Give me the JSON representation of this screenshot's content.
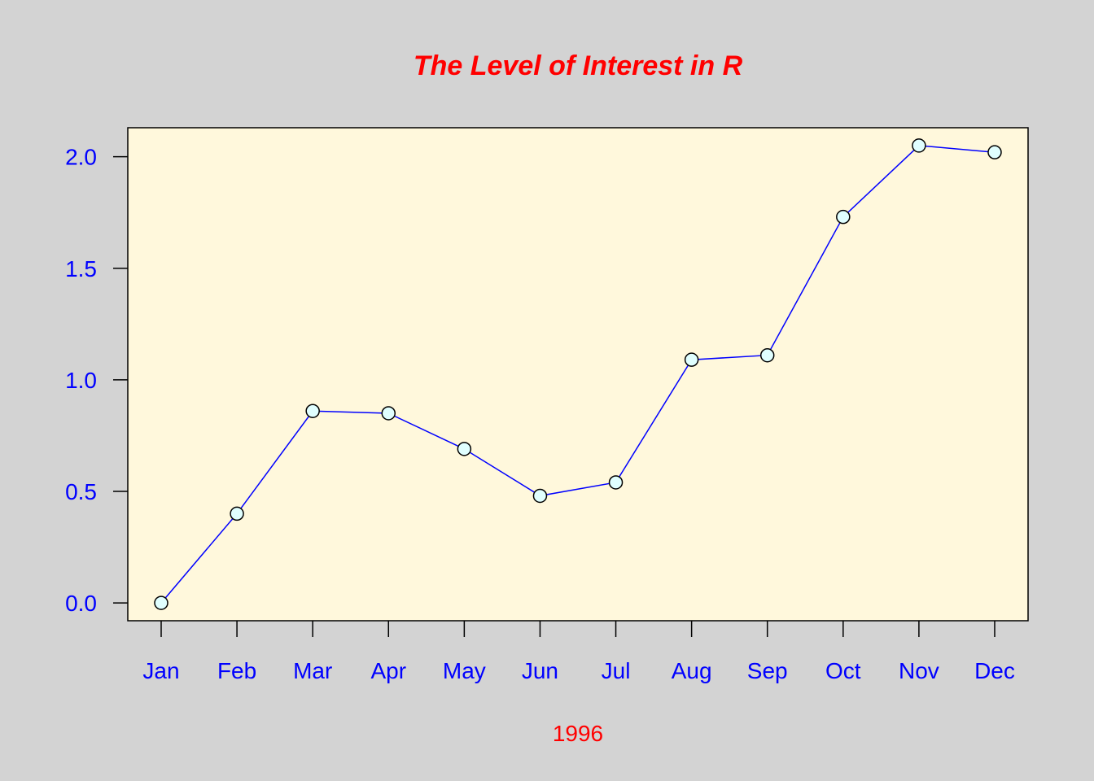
{
  "chart_data": {
    "type": "line",
    "title": "The Level of Interest in R",
    "xlabel": "1996",
    "ylabel": "",
    "categories": [
      "Jan",
      "Feb",
      "Mar",
      "Apr",
      "May",
      "Jun",
      "Jul",
      "Aug",
      "Sep",
      "Oct",
      "Nov",
      "Dec"
    ],
    "series": [
      {
        "values": [
          0.0,
          0.4,
          0.86,
          0.85,
          0.69,
          0.48,
          0.54,
          1.09,
          1.11,
          1.73,
          2.05,
          2.02
        ]
      }
    ],
    "yticks": [
      "0.0",
      "0.5",
      "1.0",
      "1.5",
      "2.0"
    ],
    "ylim": [
      -0.08,
      2.13
    ],
    "grid": false,
    "colors": {
      "background": "#d3d3d3",
      "plot_background": "#fff8dc",
      "line": "#0000ff",
      "marker_fill": "#e0ffff",
      "marker_stroke": "#000000",
      "title": "#ff0000",
      "xlabel": "#ff0000",
      "tick_labels": "#0000ff",
      "axis": "#000000"
    }
  }
}
